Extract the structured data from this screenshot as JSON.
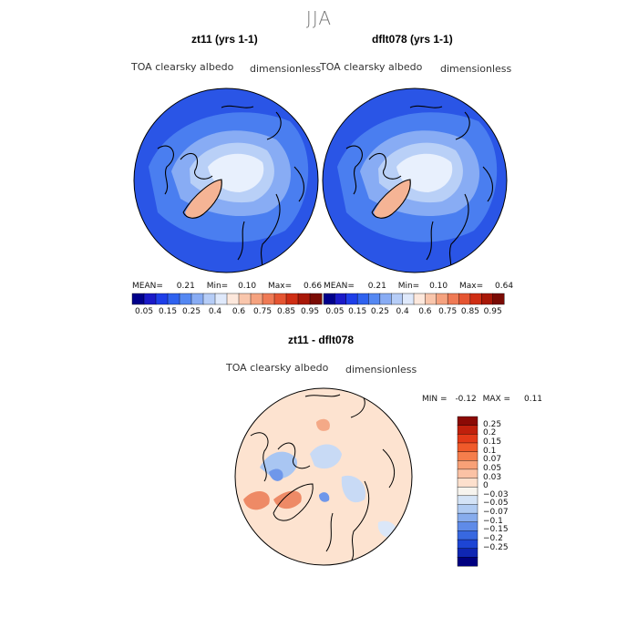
{
  "season": "JJA",
  "panels": [
    {
      "title": "zt11 (yrs 1-1)",
      "variable": "TOA clearsky albedo",
      "units": "dimensionless",
      "stats": {
        "mean_label": "MEAN=",
        "mean": "0.21",
        "min_label": "Min=",
        "min": "0.10",
        "max_label": "Max=",
        "max": "0.66"
      }
    },
    {
      "title": "dflt078 (yrs 1-1)",
      "variable": "TOA clearsky albedo",
      "units": "dimensionless",
      "stats": {
        "mean_label": "MEAN=",
        "mean": "0.21",
        "min_label": "Min=",
        "min": "0.10",
        "max_label": "Max=",
        "max": "0.64"
      }
    }
  ],
  "colorbar_h": {
    "labels": [
      "0.05",
      "0.15",
      "0.25",
      "0.4",
      "0.6",
      "0.75",
      "0.85",
      "0.95"
    ],
    "colors": [
      "#00008b",
      "#1a1ac8",
      "#1e3ee8",
      "#2f62ef",
      "#5588f2",
      "#88acf4",
      "#b6cdf7",
      "#dfe9fb",
      "#fde8dc",
      "#f9c6ac",
      "#f5a27f",
      "#ef7a55",
      "#e55532",
      "#cf2e14",
      "#a81808",
      "#7a0b04"
    ]
  },
  "diff_panel": {
    "title": "zt11 - dflt078",
    "variable": "TOA clearsky albedo",
    "units": "dimensionless",
    "min_label": "MIN =",
    "min": "-0.12",
    "max_label": "MAX =",
    "max": "0.11"
  },
  "colorbar_v": {
    "labels": [
      "0.25",
      "0.2",
      "0.15",
      "0.1",
      "0.07",
      "0.05",
      "0.03",
      "0",
      "−0.03",
      "−0.05",
      "−0.07",
      "−0.1",
      "−0.15",
      "−0.2",
      "−0.25"
    ],
    "colors": [
      "#8b0a05",
      "#c0200c",
      "#e33a18",
      "#f05a2a",
      "#f57e4c",
      "#f8a177",
      "#fbc2a5",
      "#fde0cd",
      "#f7f4ee",
      "#d4e3f6",
      "#b0cbf2",
      "#87aced",
      "#5f8be8",
      "#3868e0",
      "#1d45d4",
      "#0f26b3",
      "#000080"
    ]
  },
  "map_colors": {
    "ocean_deep": "#2a55e6",
    "ocean_mid": "#4a7ef0",
    "ice_light": "#b9d0f7",
    "ice_core": "#e8f0fd",
    "greenland": "#f5b495",
    "diff_base": "#fde3d0",
    "diff_blue": "#a9c6f2",
    "diff_red": "#ee8a66"
  }
}
